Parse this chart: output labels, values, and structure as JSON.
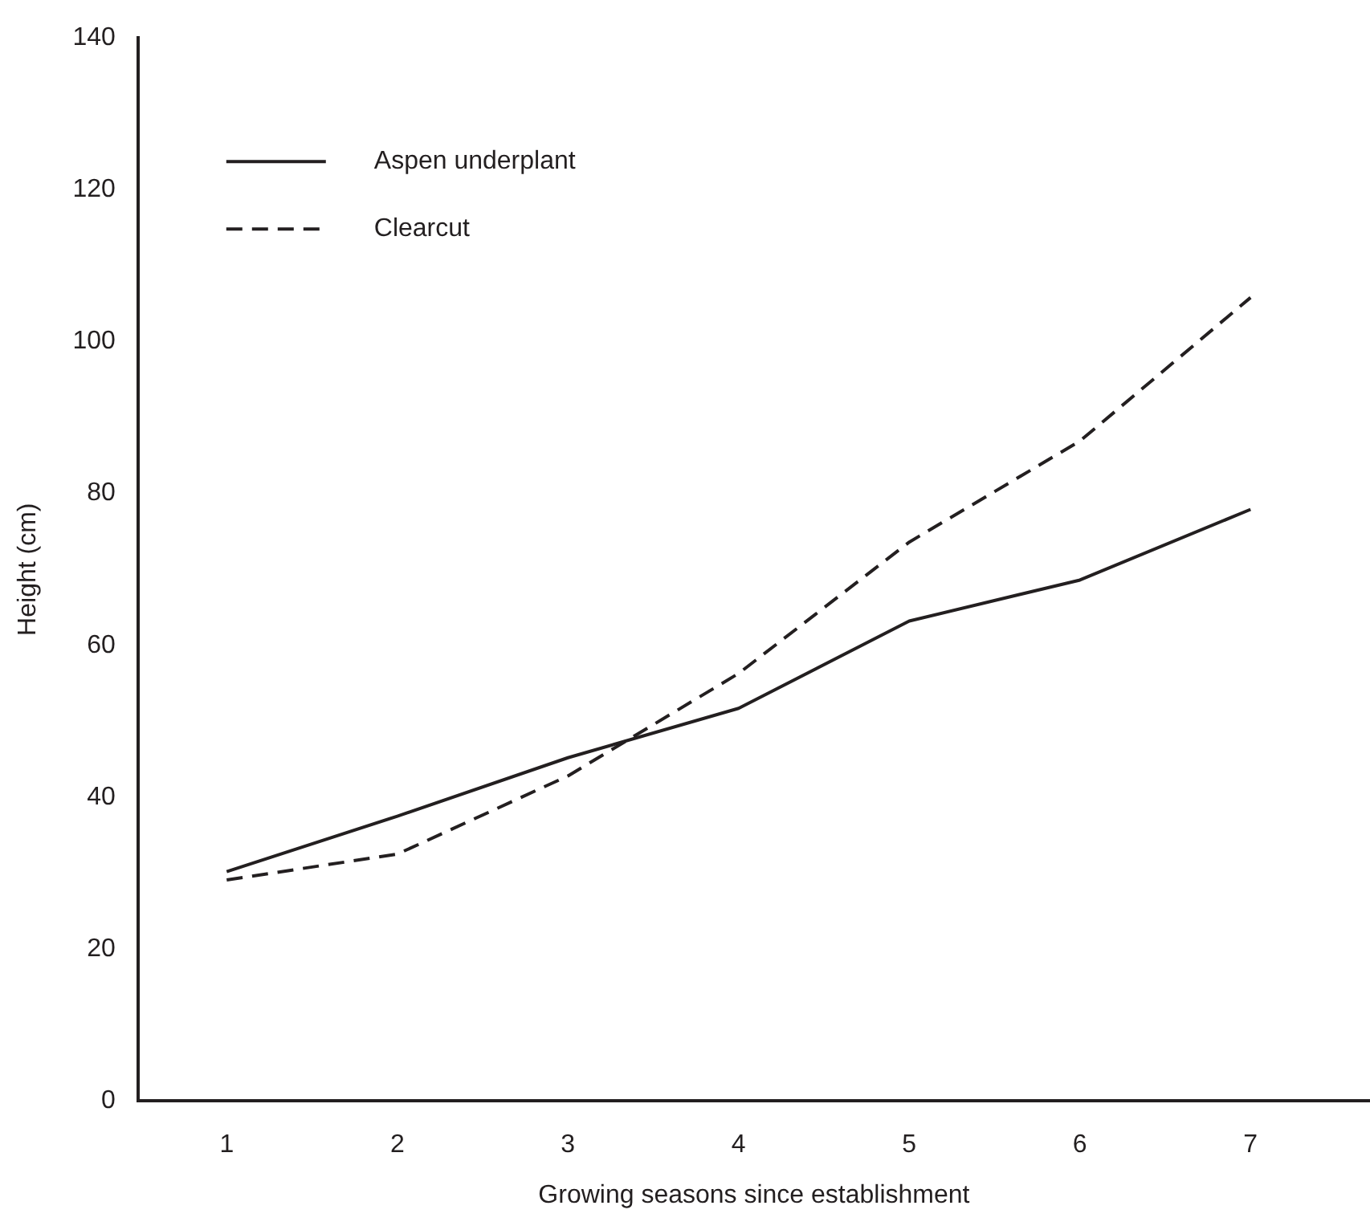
{
  "chart_data": {
    "type": "line",
    "xlabel": "Growing seasons since establishment",
    "ylabel": "Height (cm)",
    "x": [
      1,
      2,
      3,
      4,
      5,
      6,
      7
    ],
    "series": [
      {
        "name": "Aspen underplant",
        "color": "#231f20",
        "line_style": "solid",
        "values": [
          30.2,
          37.5,
          45.2,
          51.7,
          63.2,
          68.6,
          77.9
        ]
      },
      {
        "name": "Clearcut",
        "color": "#231f20",
        "line_style": "dashed",
        "values": [
          29.1,
          32.5,
          42.8,
          56.3,
          73.6,
          86.9,
          105.8
        ]
      }
    ],
    "xlim": [
      0.48,
      7.7
    ],
    "xticks": [
      1,
      2,
      3,
      4,
      5,
      6,
      7
    ],
    "ylim": [
      0,
      140
    ],
    "yticks": [
      0,
      20,
      40,
      60,
      80,
      100,
      120,
      140
    ],
    "grid": false,
    "legend": "top left",
    "marker": "none"
  }
}
